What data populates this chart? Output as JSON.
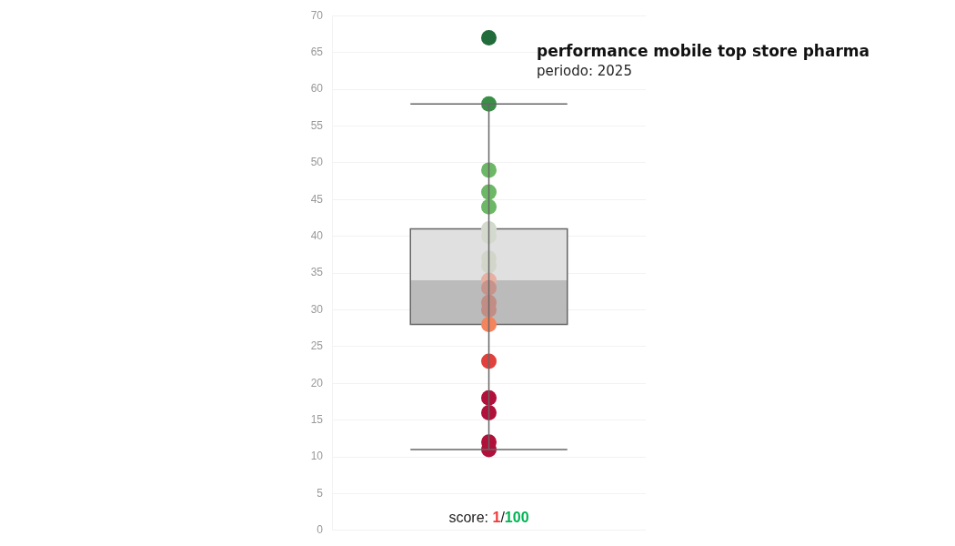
{
  "chart_data": {
    "type": "box",
    "title": "performance mobile top store pharma",
    "subtitle": "periodo: 2025",
    "annotations": [
      "score: 1/100"
    ],
    "categories": [
      null
    ],
    "boxes": [
      {
        "low": 11,
        "q1": 28,
        "median": 34,
        "q3": 41,
        "high": 58
      }
    ],
    "series": [
      {
        "type": "scatter",
        "x": [
          null,
          null,
          null,
          null,
          null,
          null,
          null,
          null,
          null,
          null,
          null,
          null,
          null,
          null,
          null,
          null,
          null,
          null,
          null
        ],
        "values": [
          67,
          58,
          49,
          46,
          44,
          41,
          40,
          37,
          36,
          34,
          33,
          31,
          30,
          28,
          23,
          18,
          16,
          12,
          11
        ],
        "colors": [
          "#226b3b",
          "#3a8f47",
          "#6db866",
          "#6db866",
          "#6db866",
          "#d4d9cd",
          "#d4d9cd",
          "#d2d6ca",
          "#d2d6ca",
          "#e6b0a2",
          "#c7948b",
          "#c28d85",
          "#c28d85",
          "#f4845c",
          "#e2403c",
          "#b0103a",
          "#b0103a",
          "#b0103a",
          "#b0103a"
        ]
      }
    ],
    "ylim": [
      0,
      70
    ],
    "yticks": [
      0,
      5,
      10,
      15,
      20,
      25,
      30,
      35,
      40,
      45,
      50,
      55,
      60,
      65,
      70
    ],
    "grid": "y",
    "tick_labels": "y",
    "marker": "circle"
  }
}
